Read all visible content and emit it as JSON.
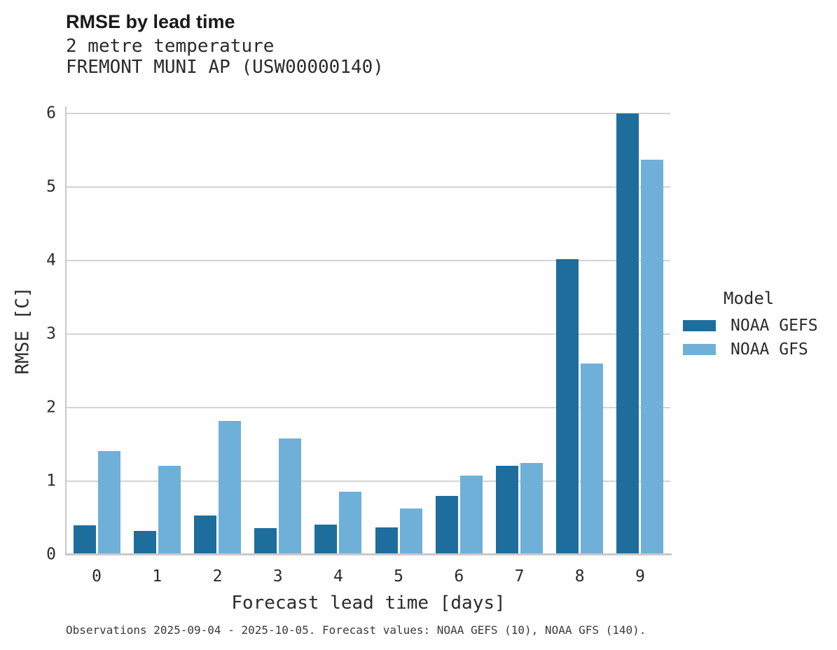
{
  "header": {
    "title": "RMSE by lead time",
    "subtitle_line1": "2 metre temperature",
    "subtitle_line2": "FREMONT MUNI AP (USW00000140)"
  },
  "legend": {
    "title": "Model",
    "items": [
      {
        "label": "NOAA GEFS",
        "color": "#1d6e9d"
      },
      {
        "label": "NOAA GFS",
        "color": "#6fb0d8"
      }
    ]
  },
  "footer": {
    "note": "Observations 2025-09-04 - 2025-10-05. Forecast values: NOAA GEFS (10), NOAA GFS (140)."
  },
  "chart_data": {
    "type": "bar",
    "title": "RMSE by lead time",
    "subtitle": [
      "2 metre temperature",
      "FREMONT MUNI AP (USW00000140)"
    ],
    "xlabel": "Forecast lead time [days]",
    "ylabel": "RMSE [C]",
    "categories": [
      "0",
      "1",
      "2",
      "3",
      "4",
      "5",
      "6",
      "7",
      "8",
      "9"
    ],
    "series": [
      {
        "name": "NOAA GEFS",
        "color": "#1d6e9d",
        "values": [
          0.4,
          0.32,
          0.53,
          0.36,
          0.41,
          0.37,
          0.8,
          1.21,
          4.02,
          6.0
        ]
      },
      {
        "name": "NOAA GFS",
        "color": "#6fb0d8",
        "values": [
          1.41,
          1.21,
          1.82,
          1.58,
          0.86,
          0.63,
          1.08,
          1.25,
          2.6,
          5.37
        ]
      }
    ],
    "ylim": [
      0,
      6
    ],
    "yticks": [
      0,
      1,
      2,
      3,
      4,
      5,
      6
    ],
    "grid": "horizontal",
    "legend_title": "Model",
    "legend_position": "right",
    "colors": {
      "grid": "#d4d4d4",
      "axis": "#c9c9c9",
      "text": "#2b2b2b"
    }
  }
}
